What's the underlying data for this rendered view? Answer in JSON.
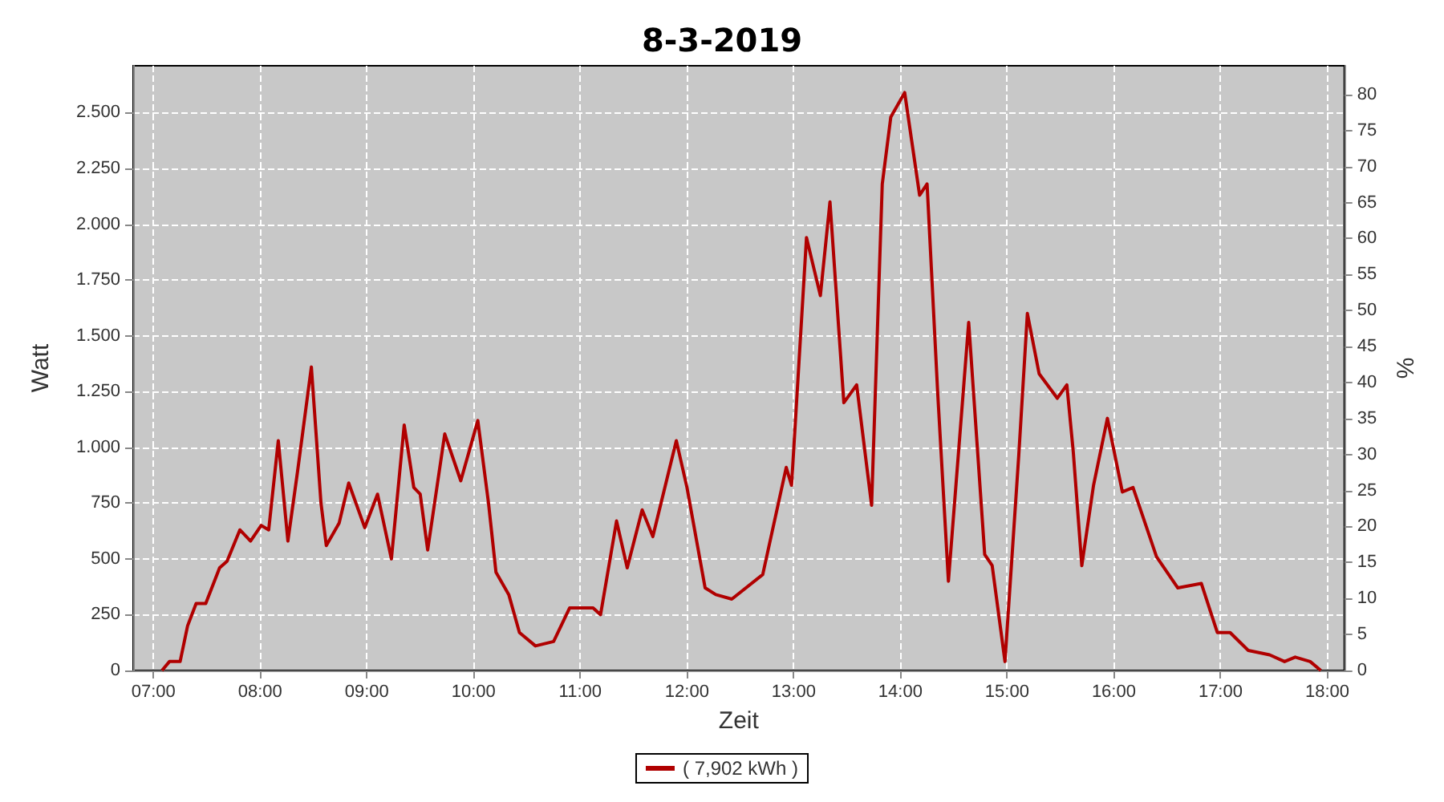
{
  "chart_data": {
    "type": "line",
    "title": "8-3-2019",
    "xlabel": "Zeit",
    "ylabel": "Watt",
    "y2label": "%",
    "x": [
      7.08,
      7.15,
      7.25,
      7.32,
      7.4,
      7.49,
      7.62,
      7.69,
      7.81,
      7.91,
      8.01,
      8.08,
      8.17,
      8.26,
      8.35,
      8.48,
      8.57,
      8.62,
      8.74,
      8.83,
      8.98,
      9.1,
      9.23,
      9.35,
      9.44,
      9.5,
      9.57,
      9.73,
      9.88,
      10.04,
      10.14,
      10.21,
      10.33,
      10.43,
      10.58,
      10.75,
      10.9,
      11.12,
      11.19,
      11.34,
      11.44,
      11.58,
      11.68,
      11.9,
      12.0,
      12.17,
      12.27,
      12.42,
      12.71,
      12.93,
      12.98,
      13.12,
      13.25,
      13.34,
      13.47,
      13.59,
      13.73,
      13.83,
      13.91,
      14.04,
      14.18,
      14.25,
      14.35,
      14.45,
      14.64,
      14.79,
      14.86,
      14.98,
      15.11,
      15.19,
      15.3,
      15.47,
      15.56,
      15.62,
      15.7,
      15.81,
      15.94,
      16.08,
      16.18,
      16.4,
      16.6,
      16.82,
      16.97,
      17.09,
      17.26,
      17.46,
      17.6,
      17.7,
      17.84,
      17.94
    ],
    "series": [
      {
        "name": "( 7,902 kWh )",
        "color": "#b00000",
        "values": [
          0,
          40,
          40,
          200,
          300,
          300,
          460,
          490,
          630,
          580,
          650,
          630,
          1030,
          580,
          890,
          1360,
          750,
          560,
          660,
          840,
          640,
          790,
          500,
          1100,
          820,
          790,
          540,
          1060,
          850,
          1120,
          750,
          440,
          340,
          170,
          110,
          130,
          280,
          280,
          250,
          670,
          460,
          720,
          600,
          1030,
          820,
          370,
          340,
          320,
          430,
          910,
          830,
          1940,
          1680,
          2100,
          1200,
          1280,
          740,
          2180,
          2480,
          2590,
          2130,
          2180,
          1240,
          400,
          1560,
          520,
          470,
          40,
          970,
          1600,
          1330,
          1220,
          1280,
          980,
          470,
          830,
          1130,
          800,
          820,
          510,
          370,
          390,
          170,
          170,
          90,
          70,
          40,
          60,
          40,
          0
        ]
      }
    ],
    "xlim": [
      6.81,
      18.16
    ],
    "xticks": [
      {
        "value": 7,
        "label": "07:00"
      },
      {
        "value": 8,
        "label": "08:00"
      },
      {
        "value": 9,
        "label": "09:00"
      },
      {
        "value": 10,
        "label": "10:00"
      },
      {
        "value": 11,
        "label": "11:00"
      },
      {
        "value": 12,
        "label": "12:00"
      },
      {
        "value": 13,
        "label": "13:00"
      },
      {
        "value": 14,
        "label": "14:00"
      },
      {
        "value": 15,
        "label": "15:00"
      },
      {
        "value": 16,
        "label": "16:00"
      },
      {
        "value": 17,
        "label": "17:00"
      },
      {
        "value": 18,
        "label": "18:00"
      }
    ],
    "ylim": [
      0,
      2710
    ],
    "yticks": [
      0,
      250,
      500,
      750,
      {
        "value": 1000,
        "label": "1.000"
      },
      {
        "value": 1250,
        "label": "1.250"
      },
      {
        "value": 1500,
        "label": "1.500"
      },
      {
        "value": 1750,
        "label": "1.750"
      },
      {
        "value": 2000,
        "label": "2.000"
      },
      {
        "value": 2250,
        "label": "2.250"
      },
      {
        "value": 2500,
        "label": "2.500"
      }
    ],
    "y2lim": [
      0,
      84
    ],
    "y2ticks": [
      0,
      5,
      10,
      15,
      20,
      25,
      30,
      35,
      40,
      45,
      50,
      55,
      60,
      65,
      70,
      75,
      80
    ],
    "grid": true,
    "legend": "bottom",
    "marker": "none",
    "line_style": "solid"
  }
}
